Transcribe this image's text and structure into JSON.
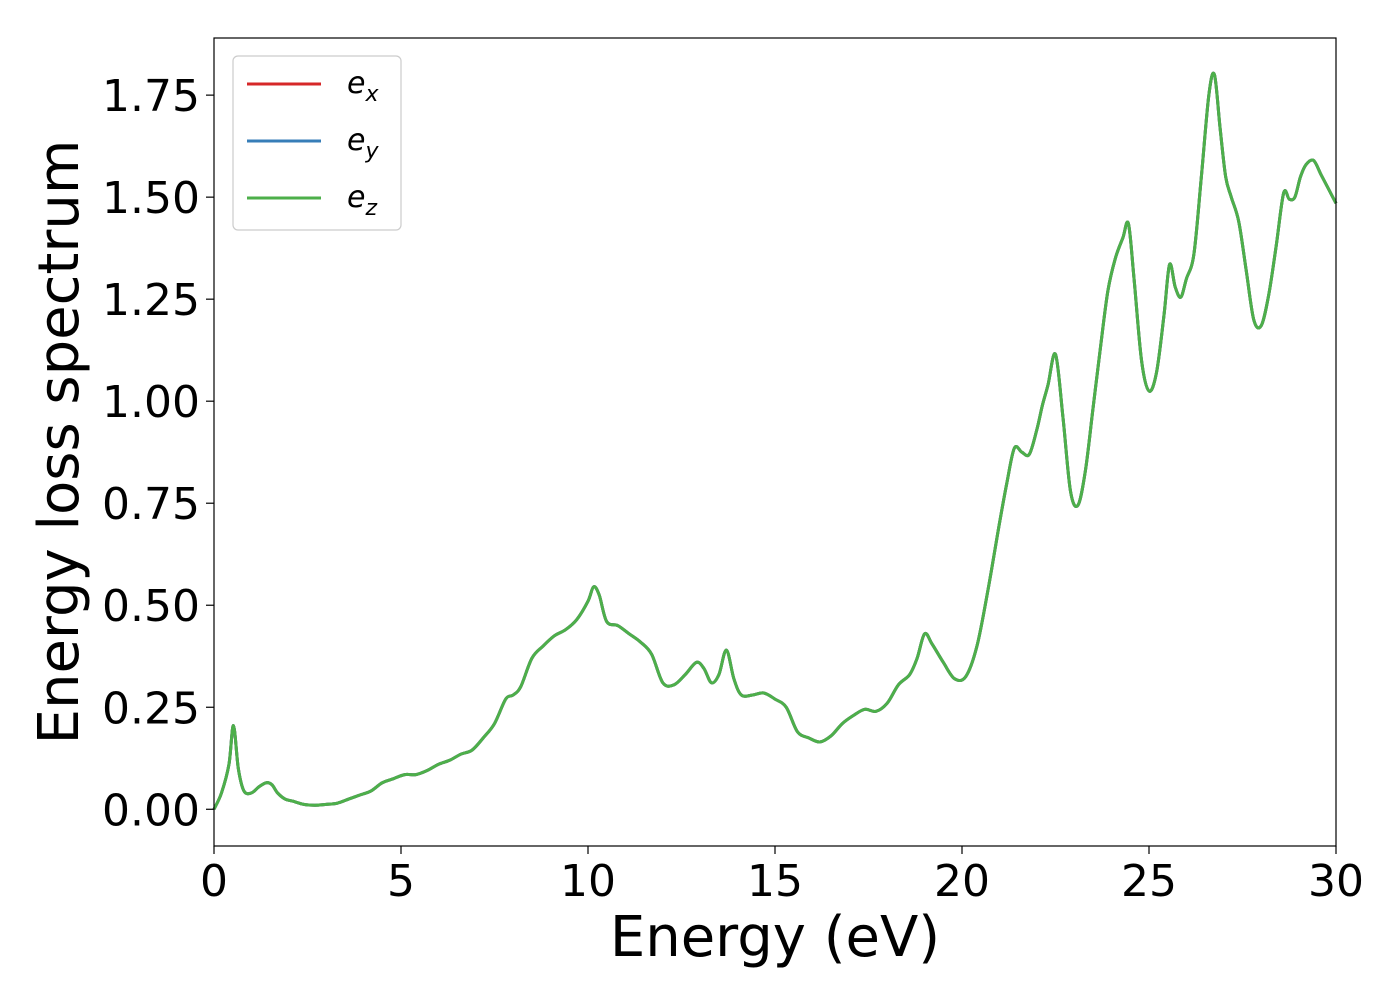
{
  "chart_data": {
    "type": "line",
    "title": "",
    "xlabel": "Energy (eV)",
    "ylabel": "Energy loss spectrum",
    "xlim": [
      0,
      30
    ],
    "ylim": [
      -0.09,
      1.89
    ],
    "xticks": [
      0,
      5,
      10,
      15,
      20,
      25,
      30
    ],
    "xtick_labels": [
      "0",
      "5",
      "10",
      "15",
      "20",
      "25",
      "30"
    ],
    "yticks": [
      0.0,
      0.25,
      0.5,
      0.75,
      1.0,
      1.25,
      1.5,
      1.75
    ],
    "ytick_labels": [
      "0.00",
      "0.25",
      "0.50",
      "0.75",
      "1.00",
      "1.25",
      "1.50",
      "1.75"
    ],
    "grid": false,
    "legend_position": "top-left",
    "series": [
      {
        "name": "e_x",
        "label_base": "e",
        "label_sub": "x",
        "color": "#d62728",
        "x": [
          0,
          0.2,
          0.4,
          0.52,
          0.65,
          0.8,
          1.0,
          1.2,
          1.4,
          1.55,
          1.7,
          1.9,
          2.1,
          2.4,
          2.7,
          3.0,
          3.3,
          3.6,
          3.9,
          4.2,
          4.5,
          4.8,
          5.1,
          5.4,
          5.7,
          6.0,
          6.3,
          6.6,
          6.9,
          7.2,
          7.5,
          7.8,
          8.0,
          8.2,
          8.5,
          8.8,
          9.1,
          9.4,
          9.7,
          10.0,
          10.15,
          10.3,
          10.5,
          10.8,
          11.1,
          11.4,
          11.7,
          12.0,
          12.3,
          12.6,
          12.9,
          13.1,
          13.3,
          13.5,
          13.7,
          13.9,
          14.1,
          14.4,
          14.7,
          15.0,
          15.3,
          15.6,
          15.9,
          16.2,
          16.5,
          16.8,
          17.1,
          17.4,
          17.7,
          18.0,
          18.3,
          18.6,
          18.8,
          19.0,
          19.2,
          19.5,
          19.8,
          20.1,
          20.4,
          20.7,
          21.0,
          21.2,
          21.4,
          21.6,
          21.8,
          22.0,
          22.15,
          22.3,
          22.5,
          22.7,
          22.9,
          23.1,
          23.3,
          23.5,
          23.7,
          23.9,
          24.1,
          24.3,
          24.45,
          24.6,
          24.8,
          25.0,
          25.2,
          25.4,
          25.55,
          25.7,
          25.85,
          26.0,
          26.2,
          26.4,
          26.6,
          26.75,
          26.9,
          27.05,
          27.2,
          27.4,
          27.6,
          27.8,
          28.0,
          28.2,
          28.4,
          28.6,
          28.75,
          28.9,
          29.05,
          29.2,
          29.4,
          29.6,
          29.8,
          30.0
        ],
        "y": [
          0.0,
          0.04,
          0.11,
          0.205,
          0.1,
          0.045,
          0.04,
          0.055,
          0.065,
          0.06,
          0.04,
          0.025,
          0.02,
          0.012,
          0.01,
          0.012,
          0.015,
          0.025,
          0.035,
          0.045,
          0.065,
          0.075,
          0.085,
          0.085,
          0.095,
          0.11,
          0.12,
          0.135,
          0.145,
          0.175,
          0.21,
          0.27,
          0.28,
          0.3,
          0.37,
          0.4,
          0.425,
          0.44,
          0.465,
          0.51,
          0.545,
          0.525,
          0.46,
          0.45,
          0.43,
          0.41,
          0.38,
          0.31,
          0.305,
          0.33,
          0.36,
          0.345,
          0.31,
          0.33,
          0.39,
          0.32,
          0.28,
          0.28,
          0.285,
          0.27,
          0.25,
          0.19,
          0.175,
          0.165,
          0.18,
          0.21,
          0.23,
          0.245,
          0.24,
          0.26,
          0.305,
          0.33,
          0.37,
          0.43,
          0.405,
          0.36,
          0.32,
          0.325,
          0.4,
          0.54,
          0.7,
          0.8,
          0.885,
          0.875,
          0.87,
          0.93,
          0.99,
          1.04,
          1.115,
          0.96,
          0.78,
          0.745,
          0.83,
          0.98,
          1.13,
          1.27,
          1.35,
          1.4,
          1.435,
          1.3,
          1.1,
          1.025,
          1.07,
          1.21,
          1.335,
          1.28,
          1.255,
          1.3,
          1.36,
          1.55,
          1.75,
          1.8,
          1.67,
          1.55,
          1.5,
          1.44,
          1.32,
          1.2,
          1.185,
          1.26,
          1.38,
          1.51,
          1.495,
          1.5,
          1.55,
          1.58,
          1.59,
          1.555,
          1.52,
          1.485
        ]
      },
      {
        "name": "e_y",
        "label_base": "e",
        "label_sub": "y",
        "color": "#377eb8",
        "x": [
          0,
          0.2,
          0.4,
          0.52,
          0.65,
          0.8,
          1.0,
          1.2,
          1.4,
          1.55,
          1.7,
          1.9,
          2.1,
          2.4,
          2.7,
          3.0,
          3.3,
          3.6,
          3.9,
          4.2,
          4.5,
          4.8,
          5.1,
          5.4,
          5.7,
          6.0,
          6.3,
          6.6,
          6.9,
          7.2,
          7.5,
          7.8,
          8.0,
          8.2,
          8.5,
          8.8,
          9.1,
          9.4,
          9.7,
          10.0,
          10.15,
          10.3,
          10.5,
          10.8,
          11.1,
          11.4,
          11.7,
          12.0,
          12.3,
          12.6,
          12.9,
          13.1,
          13.3,
          13.5,
          13.7,
          13.9,
          14.1,
          14.4,
          14.7,
          15.0,
          15.3,
          15.6,
          15.9,
          16.2,
          16.5,
          16.8,
          17.1,
          17.4,
          17.7,
          18.0,
          18.3,
          18.6,
          18.8,
          19.0,
          19.2,
          19.5,
          19.8,
          20.1,
          20.4,
          20.7,
          21.0,
          21.2,
          21.4,
          21.6,
          21.8,
          22.0,
          22.15,
          22.3,
          22.5,
          22.7,
          22.9,
          23.1,
          23.3,
          23.5,
          23.7,
          23.9,
          24.1,
          24.3,
          24.45,
          24.6,
          24.8,
          25.0,
          25.2,
          25.4,
          25.55,
          25.7,
          25.85,
          26.0,
          26.2,
          26.4,
          26.6,
          26.75,
          26.9,
          27.05,
          27.2,
          27.4,
          27.6,
          27.8,
          28.0,
          28.2,
          28.4,
          28.6,
          28.75,
          28.9,
          29.05,
          29.2,
          29.4,
          29.6,
          29.8,
          30.0
        ],
        "y": [
          0.0,
          0.04,
          0.11,
          0.205,
          0.1,
          0.045,
          0.04,
          0.055,
          0.065,
          0.06,
          0.04,
          0.025,
          0.02,
          0.012,
          0.01,
          0.012,
          0.015,
          0.025,
          0.035,
          0.045,
          0.065,
          0.075,
          0.085,
          0.085,
          0.095,
          0.11,
          0.12,
          0.135,
          0.145,
          0.175,
          0.21,
          0.27,
          0.28,
          0.3,
          0.37,
          0.4,
          0.425,
          0.44,
          0.465,
          0.51,
          0.545,
          0.525,
          0.46,
          0.45,
          0.43,
          0.41,
          0.38,
          0.31,
          0.305,
          0.33,
          0.36,
          0.345,
          0.31,
          0.33,
          0.39,
          0.32,
          0.28,
          0.28,
          0.285,
          0.27,
          0.25,
          0.19,
          0.175,
          0.165,
          0.18,
          0.21,
          0.23,
          0.245,
          0.24,
          0.26,
          0.305,
          0.33,
          0.37,
          0.43,
          0.405,
          0.36,
          0.32,
          0.325,
          0.4,
          0.54,
          0.7,
          0.8,
          0.885,
          0.875,
          0.87,
          0.93,
          0.99,
          1.04,
          1.115,
          0.96,
          0.78,
          0.745,
          0.83,
          0.98,
          1.13,
          1.27,
          1.35,
          1.4,
          1.435,
          1.3,
          1.1,
          1.025,
          1.07,
          1.21,
          1.335,
          1.28,
          1.255,
          1.3,
          1.36,
          1.55,
          1.75,
          1.8,
          1.67,
          1.55,
          1.5,
          1.44,
          1.32,
          1.2,
          1.185,
          1.26,
          1.38,
          1.51,
          1.495,
          1.5,
          1.55,
          1.58,
          1.59,
          1.555,
          1.52,
          1.485
        ]
      },
      {
        "name": "e_z",
        "label_base": "e",
        "label_sub": "z",
        "color": "#4daf4a",
        "x": [
          0,
          0.2,
          0.4,
          0.52,
          0.65,
          0.8,
          1.0,
          1.2,
          1.4,
          1.55,
          1.7,
          1.9,
          2.1,
          2.4,
          2.7,
          3.0,
          3.3,
          3.6,
          3.9,
          4.2,
          4.5,
          4.8,
          5.1,
          5.4,
          5.7,
          6.0,
          6.3,
          6.6,
          6.9,
          7.2,
          7.5,
          7.8,
          8.0,
          8.2,
          8.5,
          8.8,
          9.1,
          9.4,
          9.7,
          10.0,
          10.15,
          10.3,
          10.5,
          10.8,
          11.1,
          11.4,
          11.7,
          12.0,
          12.3,
          12.6,
          12.9,
          13.1,
          13.3,
          13.5,
          13.7,
          13.9,
          14.1,
          14.4,
          14.7,
          15.0,
          15.3,
          15.6,
          15.9,
          16.2,
          16.5,
          16.8,
          17.1,
          17.4,
          17.7,
          18.0,
          18.3,
          18.6,
          18.8,
          19.0,
          19.2,
          19.5,
          19.8,
          20.1,
          20.4,
          20.7,
          21.0,
          21.2,
          21.4,
          21.6,
          21.8,
          22.0,
          22.15,
          22.3,
          22.5,
          22.7,
          22.9,
          23.1,
          23.3,
          23.5,
          23.7,
          23.9,
          24.1,
          24.3,
          24.45,
          24.6,
          24.8,
          25.0,
          25.2,
          25.4,
          25.55,
          25.7,
          25.85,
          26.0,
          26.2,
          26.4,
          26.6,
          26.75,
          26.9,
          27.05,
          27.2,
          27.4,
          27.6,
          27.8,
          28.0,
          28.2,
          28.4,
          28.6,
          28.75,
          28.9,
          29.05,
          29.2,
          29.4,
          29.6,
          29.8,
          30.0
        ],
        "y": [
          0.0,
          0.04,
          0.11,
          0.205,
          0.1,
          0.045,
          0.04,
          0.055,
          0.065,
          0.06,
          0.04,
          0.025,
          0.02,
          0.012,
          0.01,
          0.012,
          0.015,
          0.025,
          0.035,
          0.045,
          0.065,
          0.075,
          0.085,
          0.085,
          0.095,
          0.11,
          0.12,
          0.135,
          0.145,
          0.175,
          0.21,
          0.27,
          0.28,
          0.3,
          0.37,
          0.4,
          0.425,
          0.44,
          0.465,
          0.51,
          0.545,
          0.525,
          0.46,
          0.45,
          0.43,
          0.41,
          0.38,
          0.31,
          0.305,
          0.33,
          0.36,
          0.345,
          0.31,
          0.33,
          0.39,
          0.32,
          0.28,
          0.28,
          0.285,
          0.27,
          0.25,
          0.19,
          0.175,
          0.165,
          0.18,
          0.21,
          0.23,
          0.245,
          0.24,
          0.26,
          0.305,
          0.33,
          0.37,
          0.43,
          0.405,
          0.36,
          0.32,
          0.325,
          0.4,
          0.54,
          0.7,
          0.8,
          0.885,
          0.875,
          0.87,
          0.93,
          0.99,
          1.04,
          1.115,
          0.96,
          0.78,
          0.745,
          0.83,
          0.98,
          1.13,
          1.27,
          1.35,
          1.4,
          1.435,
          1.3,
          1.1,
          1.025,
          1.07,
          1.21,
          1.335,
          1.28,
          1.255,
          1.3,
          1.36,
          1.55,
          1.75,
          1.8,
          1.67,
          1.55,
          1.5,
          1.44,
          1.32,
          1.2,
          1.185,
          1.26,
          1.38,
          1.51,
          1.495,
          1.5,
          1.55,
          1.58,
          1.59,
          1.555,
          1.52,
          1.485
        ]
      }
    ]
  }
}
